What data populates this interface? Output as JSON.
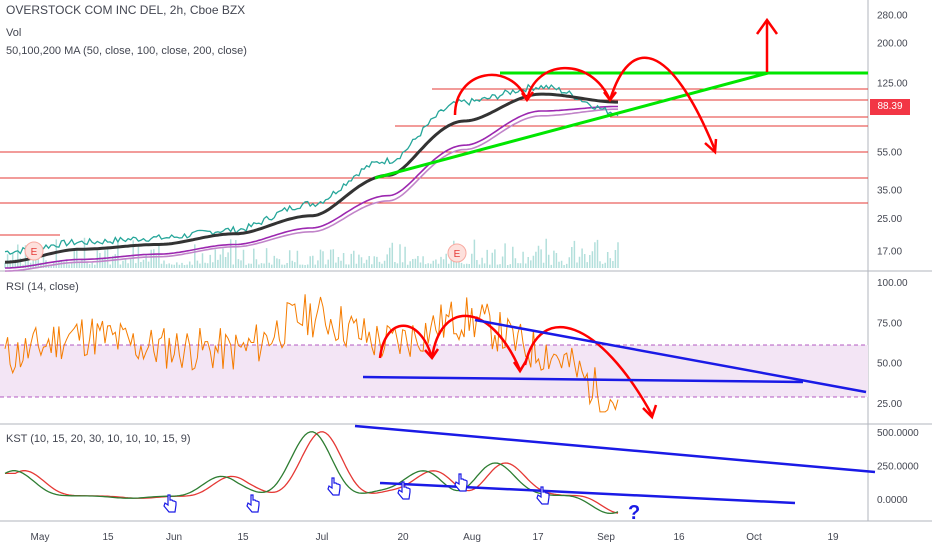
{
  "header": {
    "title": "OVERSTOCK COM INC DEL, 2h, Cboe BZX",
    "vol_label": "Vol",
    "ma_label": "50,100,200 MA (50, close, 100, close, 200, close)",
    "rsi_label": "RSI (14, close)",
    "kst_label": "KST (10, 15, 20, 30, 10, 10, 10, 15, 9)"
  },
  "last_price": "88.39",
  "colors": {
    "price": "#26a69a",
    "ma50": "#333333",
    "ma100": "#9c27b0",
    "ma200": "#c184c9",
    "rsi": "#f57c00",
    "rsi_band": "#f3e5f5",
    "kst": "#2e7d32",
    "kst_signal": "#e53935",
    "drawing_red": "#ff0000",
    "drawing_green": "#00e600",
    "drawing_blue": "#1a1ae6",
    "level_line": "#e53935"
  },
  "price_axis_labels": [
    "280.00",
    "200.00",
    "125.00",
    "88.39",
    "55.00",
    "35.00",
    "25.00",
    "17.00"
  ],
  "rsi_axis_labels": [
    "100.00",
    "75.00",
    "50.00",
    "25.00"
  ],
  "kst_axis_labels": [
    "500.0000",
    "250.0000",
    "0.0000"
  ],
  "time_axis_labels": [
    "May",
    "15",
    "Jun",
    "15",
    "Jul",
    "20",
    "Aug",
    "17",
    "Sep",
    "16",
    "Oct",
    "19"
  ],
  "annotations": {
    "earnings_marker": "E",
    "question": "?"
  },
  "chart_data": [
    {
      "type": "line",
      "title": "OVERSTOCK COM INC DEL, 2h, Cboe BZX",
      "x": [
        "May",
        "15",
        "Jun",
        "15",
        "Jul",
        "20",
        "Aug",
        "17",
        "Sep"
      ],
      "y_scale": "log",
      "ylim": [
        14,
        320
      ],
      "series": [
        {
          "name": "close",
          "values": [
            17,
            19,
            20,
            22,
            30,
            50,
            100,
            120,
            88.39
          ]
        },
        {
          "name": "50",
          "values": [
            15,
            17.5,
            18.5,
            21,
            26,
            42,
            80,
            110,
            100
          ]
        },
        {
          "name": "100",
          "values": [
            14,
            15.5,
            16.5,
            18.5,
            22.5,
            33,
            60,
            90,
            95
          ]
        },
        {
          "name": "200",
          "values": [
            13.5,
            15,
            16,
            18,
            21.5,
            31,
            57,
            85,
            92
          ]
        }
      ]
    },
    {
      "type": "line",
      "title": "RSI (14, close)",
      "x": [
        "May",
        "15",
        "Jun",
        "15",
        "Jul",
        "20",
        "Aug",
        "17",
        "Sep"
      ],
      "ylim": [
        15,
        105
      ],
      "series": [
        {
          "name": "RSI",
          "values": [
            55,
            68,
            60,
            58,
            80,
            63,
            78,
            58,
            28
          ]
        }
      ]
    },
    {
      "type": "line",
      "title": "KST (10, 15, 20, 30, 10, 10, 10, 15, 9)",
      "x": [
        "May",
        "15",
        "Jun",
        "15",
        "Jul",
        "20",
        "Aug",
        "17",
        "Sep"
      ],
      "ylim": [
        -150,
        560
      ],
      "series": [
        {
          "name": "KST",
          "values": [
            200,
            0,
            -30,
            170,
            480,
            90,
            400,
            60,
            -140
          ]
        }
      ]
    }
  ]
}
